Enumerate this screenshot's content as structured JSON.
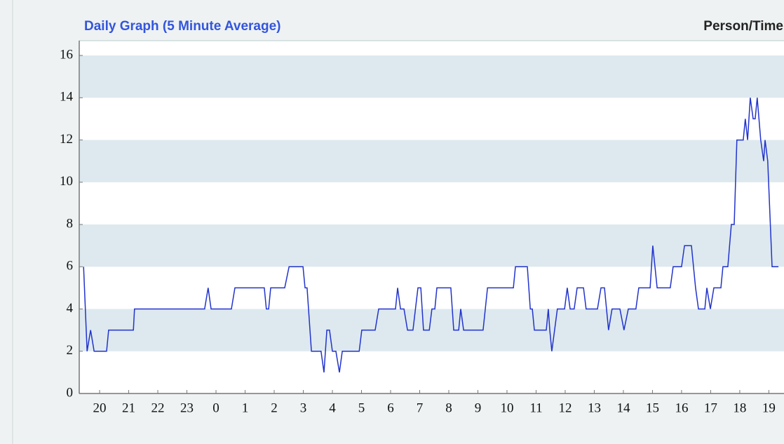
{
  "chart_data": {
    "type": "line",
    "title": "Daily Graph (5 Minute Average)",
    "y_label": "Person/Time",
    "xlim": [
      19.3,
      43.52
    ],
    "ylim": [
      0,
      16.7
    ],
    "yticks": [
      0,
      2,
      4,
      6,
      8,
      10,
      12,
      14,
      16
    ],
    "xticks": [
      20,
      21,
      22,
      23,
      {
        "value": 24,
        "label": "0"
      },
      {
        "value": 25,
        "label": "1"
      },
      {
        "value": 26,
        "label": "2"
      },
      {
        "value": 27,
        "label": "3"
      },
      {
        "value": 28,
        "label": "4"
      },
      {
        "value": 29,
        "label": "5"
      },
      {
        "value": 30,
        "label": "6"
      },
      {
        "value": 31,
        "label": "7"
      },
      {
        "value": 32,
        "label": "8"
      },
      {
        "value": 33,
        "label": "9"
      },
      {
        "value": 34,
        "label": "10"
      },
      {
        "value": 35,
        "label": "11"
      },
      {
        "value": 36,
        "label": "12"
      },
      {
        "value": 37,
        "label": "13"
      },
      {
        "value": 38,
        "label": "14"
      },
      {
        "value": 39,
        "label": "15"
      },
      {
        "value": 40,
        "label": "16"
      },
      {
        "value": 41,
        "label": "17"
      },
      {
        "value": 42,
        "label": "18"
      },
      {
        "value": 43,
        "label": "19"
      }
    ],
    "grid": "bands",
    "series": [
      {
        "color": "#2233cc",
        "x": [
          19.45,
          19.57,
          19.69,
          19.81,
          20.24,
          20.31,
          21.16,
          21.2,
          23.61,
          23.73,
          23.83,
          24.53,
          24.65,
          25.66,
          25.73,
          25.81,
          25.88,
          26.36,
          26.51,
          26.99,
          27.06,
          27.13,
          27.28,
          27.61,
          27.71,
          27.81,
          27.9,
          28.0,
          28.12,
          28.24,
          28.34,
          28.92,
          29.01,
          29.47,
          29.59,
          30.17,
          30.24,
          30.34,
          30.46,
          30.58,
          30.77,
          30.94,
          31.04,
          31.13,
          31.33,
          31.42,
          31.52,
          31.59,
          32.07,
          32.17,
          32.34,
          32.41,
          32.51,
          33.18,
          33.33,
          34.22,
          34.29,
          34.7,
          34.8,
          34.87,
          34.94,
          35.35,
          35.42,
          35.47,
          35.54,
          35.73,
          35.98,
          36.07,
          36.17,
          36.31,
          36.41,
          36.63,
          36.72,
          37.11,
          37.23,
          37.35,
          37.49,
          37.61,
          37.88,
          38.02,
          38.17,
          38.43,
          38.53,
          38.92,
          39.01,
          39.16,
          39.61,
          39.71,
          40.0,
          40.1,
          40.34,
          40.48,
          40.58,
          40.8,
          40.87,
          40.99,
          41.11,
          41.35,
          41.42,
          41.59,
          41.71,
          41.81,
          41.9,
          42.12,
          42.19,
          42.27,
          42.36,
          42.46,
          42.53,
          42.6,
          42.72,
          42.82,
          42.87,
          42.96,
          43.11,
          43.33
        ],
        "values": [
          6,
          2,
          3,
          2,
          2,
          3,
          3,
          4,
          4,
          5,
          4,
          4,
          5,
          5,
          4,
          4,
          5,
          5,
          6,
          6,
          5,
          5,
          2,
          2,
          1,
          3,
          3,
          2,
          2,
          1,
          2,
          2,
          3,
          3,
          4,
          4,
          5,
          4,
          4,
          3,
          3,
          5,
          5,
          3,
          3,
          4,
          4,
          5,
          5,
          3,
          3,
          4,
          3,
          3,
          5,
          5,
          6,
          6,
          4,
          4,
          3,
          3,
          4,
          3,
          2,
          4,
          4,
          5,
          4,
          4,
          5,
          5,
          4,
          4,
          5,
          5,
          3,
          4,
          4,
          3,
          4,
          4,
          5,
          5,
          7,
          5,
          5,
          6,
          6,
          7,
          7,
          5,
          4,
          4,
          5,
          4,
          5,
          5,
          6,
          6,
          8,
          8,
          12,
          12,
          13,
          12,
          14,
          13,
          13,
          14,
          12,
          11,
          12,
          11,
          6,
          6
        ]
      }
    ]
  }
}
